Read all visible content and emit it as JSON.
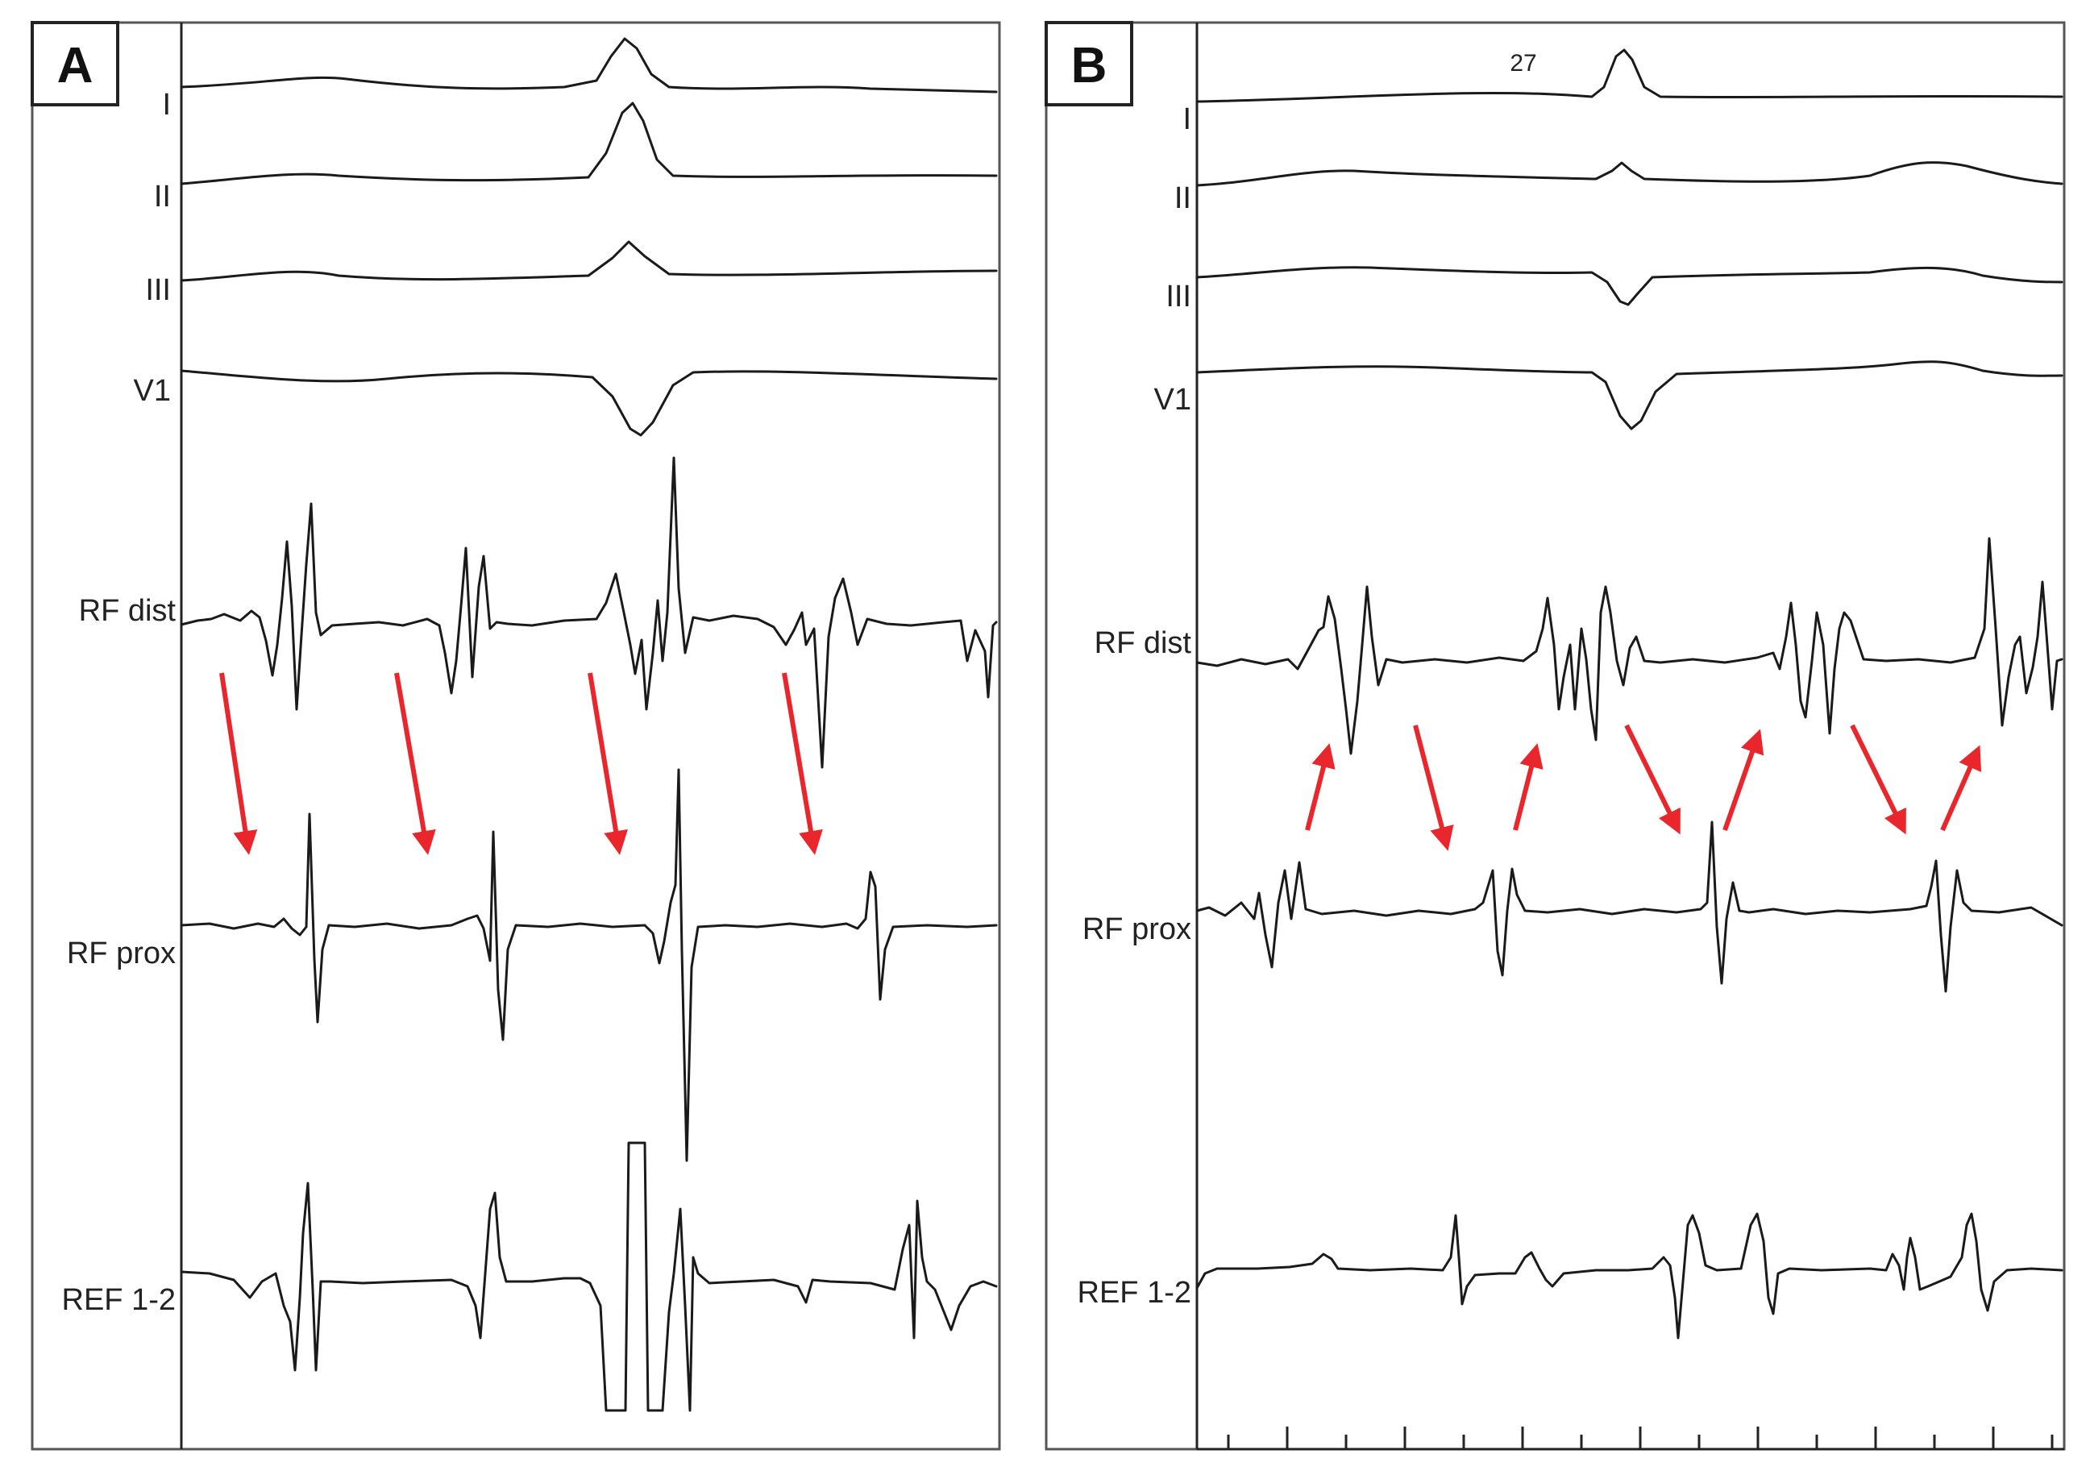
{
  "colors": {
    "arrow": "#e8262b",
    "trace": "#1a1a1a",
    "frame": "#555555",
    "background": "#ffffff"
  },
  "panels": [
    {
      "id": "A",
      "label": "A",
      "leads": [
        "I",
        "II",
        "III",
        "V1",
        "RF dist",
        "RF prox",
        "REF 1-2"
      ],
      "arrow_direction": "down",
      "arrow_count": 4
    },
    {
      "id": "B",
      "label": "B",
      "beat_number": "27",
      "leads": [
        "I",
        "II",
        "III",
        "V1",
        "RF dist",
        "RF prox",
        "REF 1-2"
      ],
      "arrow_directions": [
        "up",
        "down",
        "up",
        "down",
        "up",
        "down",
        "up"
      ]
    }
  ]
}
